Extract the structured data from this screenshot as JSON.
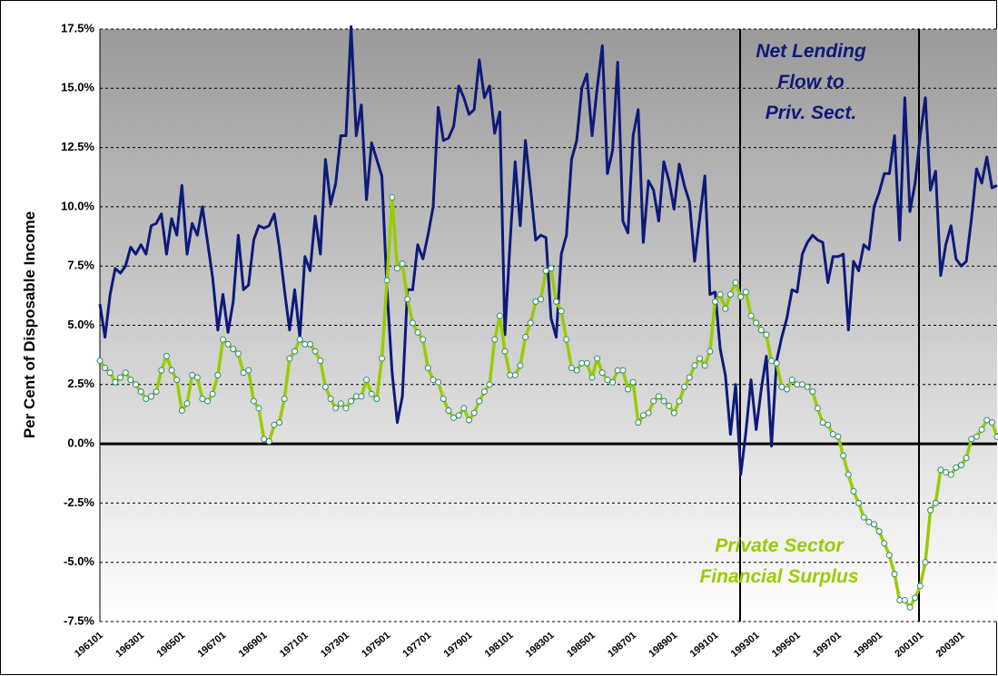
{
  "chart_data": {
    "type": "line",
    "y_label": "Per Cent of Disposable Income",
    "annotations": [
      "Net Lending",
      "Flow to",
      "Priv. Sect.",
      "Private Sector",
      "Financial Surplus"
    ],
    "categories": [
      "196101",
      null,
      null,
      null,
      null,
      null,
      null,
      null,
      "196301",
      null,
      null,
      null,
      null,
      null,
      null,
      null,
      "196501",
      null,
      null,
      null,
      null,
      null,
      null,
      null,
      "196701",
      null,
      null,
      null,
      null,
      null,
      null,
      null,
      "196901",
      null,
      null,
      null,
      null,
      null,
      null,
      null,
      "197101",
      null,
      null,
      null,
      null,
      null,
      null,
      null,
      "197301",
      null,
      null,
      null,
      null,
      null,
      null,
      null,
      "197501",
      null,
      null,
      null,
      null,
      null,
      null,
      null,
      "197701",
      null,
      null,
      null,
      null,
      null,
      null,
      null,
      "197901",
      null,
      null,
      null,
      null,
      null,
      null,
      null,
      "198101",
      null,
      null,
      null,
      null,
      null,
      null,
      null,
      "198301",
      null,
      null,
      null,
      null,
      null,
      null,
      null,
      "198501",
      null,
      null,
      null,
      null,
      null,
      null,
      null,
      "198701",
      null,
      null,
      null,
      null,
      null,
      null,
      null,
      "198901",
      null,
      null,
      null,
      null,
      null,
      null,
      null,
      "199101",
      null,
      null,
      null,
      null,
      null,
      null,
      null,
      "199301",
      null,
      null,
      null,
      null,
      null,
      null,
      null,
      "199501",
      null,
      null,
      null,
      null,
      null,
      null,
      null,
      "199701",
      null,
      null,
      null,
      null,
      null,
      null,
      null,
      "199901",
      null,
      null,
      null,
      null,
      null,
      null,
      null,
      "200101",
      null,
      null,
      null,
      null,
      null,
      null,
      null,
      "200301",
      null,
      null,
      null,
      null,
      null,
      null,
      null
    ],
    "series": [
      {
        "color": "#0d1a7a",
        "markers": false,
        "values": [
          5.9,
          4.5,
          6.3,
          7.4,
          7.2,
          7.5,
          8.3,
          8.0,
          8.4,
          8.0,
          9.2,
          9.3,
          9.7,
          8.0,
          9.5,
          8.8,
          10.9,
          8.0,
          9.3,
          8.8,
          10.0,
          8.5,
          7.0,
          4.8,
          6.3,
          4.7,
          6.0,
          8.8,
          6.5,
          6.7,
          8.6,
          9.2,
          9.1,
          9.2,
          9.7,
          8.3,
          6.5,
          4.8,
          6.5,
          4.5,
          7.9,
          7.3,
          9.6,
          8.0,
          12.0,
          10.1,
          11.0,
          13.0,
          13.0,
          17.6,
          13.0,
          14.3,
          10.3,
          12.7,
          12.0,
          11.3,
          6.5,
          3.0,
          0.9,
          2.0,
          6.5,
          6.5,
          8.4,
          7.8,
          8.8,
          10.0,
          14.2,
          12.8,
          12.9,
          13.4,
          15.1,
          14.6,
          13.9,
          14.1,
          16.2,
          14.6,
          15.1,
          13.1,
          14.0,
          4.6,
          8.5,
          11.9,
          9.2,
          12.8,
          10.8,
          8.6,
          8.8,
          8.7,
          5.3,
          4.5,
          8.0,
          8.8,
          12.0,
          12.8,
          15.0,
          15.6,
          13.0,
          15.0,
          16.8,
          11.4,
          12.4,
          16.1,
          9.4,
          8.9,
          13.0,
          14.1,
          8.5,
          11.1,
          10.7,
          9.4,
          11.9,
          11.1,
          9.9,
          11.8,
          10.9,
          10.2,
          7.7,
          9.5,
          11.3,
          6.3,
          6.4,
          4.0,
          2.9,
          0.4,
          2.5,
          -1.3,
          0.5,
          2.7,
          0.6,
          2.3,
          3.7,
          -0.1,
          3.5,
          4.5,
          5.3,
          6.5,
          6.4,
          8.0,
          8.5,
          8.8,
          8.6,
          8.5,
          6.8,
          7.9,
          7.9,
          8.0,
          4.8,
          7.7,
          7.3,
          8.4,
          8.2,
          10.0,
          10.6,
          11.4,
          11.4,
          13.0,
          8.6,
          14.6,
          9.8,
          11.0,
          13.0,
          14.6,
          10.7,
          11.5,
          7.1,
          8.4,
          9.2,
          7.8,
          7.5,
          7.7,
          9.5,
          11.6,
          11.0,
          12.1,
          10.8,
          10.9
        ]
      },
      {
        "color": "#99cc00",
        "markers": true,
        "values": [
          3.5,
          3.2,
          3.0,
          2.6,
          2.8,
          3.0,
          2.7,
          2.5,
          2.2,
          1.9,
          2.0,
          2.2,
          3.1,
          3.7,
          3.1,
          2.7,
          1.4,
          1.7,
          2.9,
          2.8,
          1.9,
          1.8,
          2.1,
          2.9,
          4.4,
          4.2,
          4.0,
          3.8,
          3.0,
          3.1,
          1.8,
          1.5,
          0.2,
          0.1,
          0.8,
          0.9,
          1.9,
          3.6,
          3.9,
          4.4,
          4.2,
          4.2,
          3.9,
          3.5,
          2.4,
          1.9,
          1.5,
          1.7,
          1.5,
          1.8,
          2.0,
          2.0,
          2.7,
          2.1,
          1.9,
          3.6,
          6.9,
          10.4,
          7.4,
          7.6,
          6.1,
          5.1,
          4.7,
          4.4,
          3.2,
          2.7,
          2.6,
          1.9,
          1.4,
          1.1,
          1.2,
          1.5,
          1.0,
          1.3,
          1.8,
          2.2,
          2.5,
          4.4,
          5.4,
          3.9,
          2.9,
          2.9,
          3.3,
          4.5,
          5.1,
          6.0,
          6.1,
          7.3,
          7.4,
          6.0,
          5.6,
          4.4,
          3.2,
          3.1,
          3.4,
          3.4,
          2.8,
          3.6,
          3.0,
          2.7,
          2.6,
          3.1,
          3.1,
          2.3,
          2.6,
          0.9,
          1.2,
          1.3,
          1.8,
          2.0,
          1.8,
          1.6,
          1.3,
          1.8,
          2.4,
          2.8,
          3.3,
          3.6,
          3.3,
          3.9,
          6.0,
          6.3,
          5.7,
          6.3,
          6.8,
          6.2,
          6.4,
          5.4,
          5.1,
          4.8,
          4.6,
          3.5,
          3.4,
          2.4,
          2.3,
          2.7,
          2.5,
          2.5,
          2.4,
          2.2,
          1.5,
          0.9,
          0.8,
          0.4,
          0.3,
          -0.5,
          -1.3,
          -2.0,
          -2.5,
          -3.1,
          -3.3,
          -3.4,
          -3.7,
          -4.2,
          -4.7,
          -5.5,
          -6.6,
          -6.6,
          -6.9,
          -6.5,
          -6.0,
          -5.0,
          -2.8,
          -2.5,
          -1.1,
          -1.2,
          -1.3,
          -1.0,
          -0.9,
          -0.6,
          0.2,
          0.3,
          0.6,
          1.0,
          0.9,
          0.3
        ]
      }
    ],
    "ylim": [
      -7.5,
      17.5
    ],
    "yticks": [
      {
        "value": -7.5,
        "label": "-7.5%"
      },
      {
        "value": -5,
        "label": "-5.0%"
      },
      {
        "value": -2.5,
        "label": "-2.5%"
      },
      {
        "value": 0,
        "label": "0.0%"
      },
      {
        "value": 2.5,
        "label": "2.5%"
      },
      {
        "value": 5,
        "label": "5.0%"
      },
      {
        "value": 7.5,
        "label": "7.5%"
      },
      {
        "value": 10,
        "label": "10.0%"
      },
      {
        "value": 12.5,
        "label": "12.5%"
      },
      {
        "value": 15,
        "label": "15.0%"
      },
      {
        "value": 17.5,
        "label": "17.5%"
      }
    ],
    "grid": true
  }
}
